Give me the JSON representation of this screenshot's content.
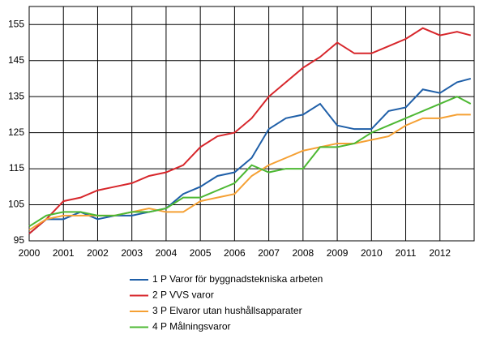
{
  "chart_data": {
    "type": "line",
    "x": [
      2000,
      2000.5,
      2001,
      2001.5,
      2002,
      2002.5,
      2003,
      2003.5,
      2004,
      2004.5,
      2005,
      2005.5,
      2006,
      2006.5,
      2007,
      2007.5,
      2008,
      2008.5,
      2009,
      2009.5,
      2010,
      2010.5,
      2011,
      2011.5,
      2012,
      2012.5,
      2012.9
    ],
    "series": [
      {
        "name": "1 P Varor för byggnadstekniska arbeten",
        "color": "#1f5fa8",
        "values": [
          97,
          101,
          101,
          103,
          101,
          102,
          102,
          103,
          104,
          108,
          110,
          113,
          114,
          118,
          126,
          129,
          130,
          133,
          127,
          126,
          126,
          131,
          132,
          137,
          136,
          139,
          140
        ]
      },
      {
        "name": "2 P VVS varor",
        "color": "#d7262b",
        "values": [
          97,
          101,
          106,
          107,
          109,
          110,
          111,
          113,
          114,
          116,
          121,
          124,
          125,
          129,
          135,
          139,
          143,
          146,
          150,
          147,
          147,
          149,
          151,
          154,
          152,
          153,
          152
        ]
      },
      {
        "name": "3 P Elvaror utan hushållsapparater",
        "color": "#f5a033",
        "values": [
          98,
          101,
          102,
          102,
          102,
          102,
          103,
          104,
          103,
          103,
          106,
          107,
          108,
          113,
          116,
          118,
          120,
          121,
          122,
          122,
          123,
          124,
          127,
          129,
          129,
          130,
          130
        ]
      },
      {
        "name": "4 P Målningsvaror",
        "color": "#4db833",
        "values": [
          99,
          102,
          103,
          103,
          102,
          102,
          103,
          103,
          104,
          107,
          107,
          109,
          111,
          116,
          114,
          115,
          115,
          121,
          121,
          122,
          125,
          127,
          129,
          131,
          133,
          135,
          133
        ]
      }
    ],
    "xlim": [
      2000,
      2013
    ],
    "xticks": [
      2000,
      2001,
      2002,
      2003,
      2004,
      2005,
      2006,
      2007,
      2008,
      2009,
      2010,
      2011,
      2012
    ],
    "ylim": [
      95,
      160
    ],
    "yticks": [
      95,
      105,
      115,
      125,
      135,
      145,
      155
    ],
    "grid": true,
    "legend": "bottom"
  }
}
